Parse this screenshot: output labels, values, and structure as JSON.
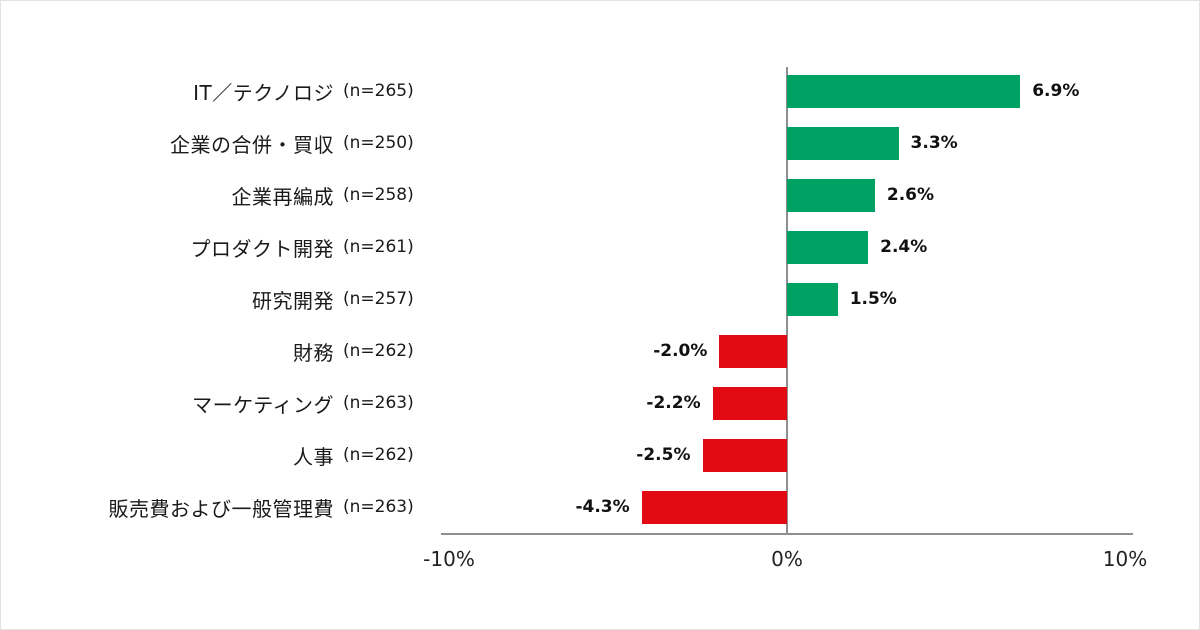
{
  "chart_data": {
    "type": "bar",
    "orientation": "horizontal",
    "title": "",
    "xlabel": "",
    "ylabel": "",
    "categories": [
      "IT／テクノロジ",
      "企業の合併・買収",
      "企業再編成",
      "プロダクト開発",
      "研究開発",
      "財務",
      "マーケティング",
      "人事",
      "販売費および一般管理費"
    ],
    "n_labels": [
      "(n=265)",
      "(n=250)",
      "(n=258)",
      "(n=261)",
      "(n=257)",
      "(n=262)",
      "(n=263)",
      "(n=262)",
      "(n=263)"
    ],
    "values": [
      6.9,
      3.3,
      2.6,
      2.4,
      1.5,
      -2.0,
      -2.2,
      -2.5,
      -4.3
    ],
    "value_labels": [
      "6.9%",
      "3.3%",
      "2.6%",
      "2.4%",
      "1.5%",
      "-2.0%",
      "-2.2%",
      "-2.5%",
      "-4.3%"
    ],
    "xlim": [
      -10,
      10
    ],
    "x_ticks": [
      "-10%",
      "0%",
      "10%"
    ],
    "x_tick_values": [
      -10,
      0,
      10
    ],
    "colors": {
      "positive": "#00A263",
      "negative": "#E30B13",
      "axis": "#8f8f8f"
    },
    "grid": false,
    "legend": false
  }
}
